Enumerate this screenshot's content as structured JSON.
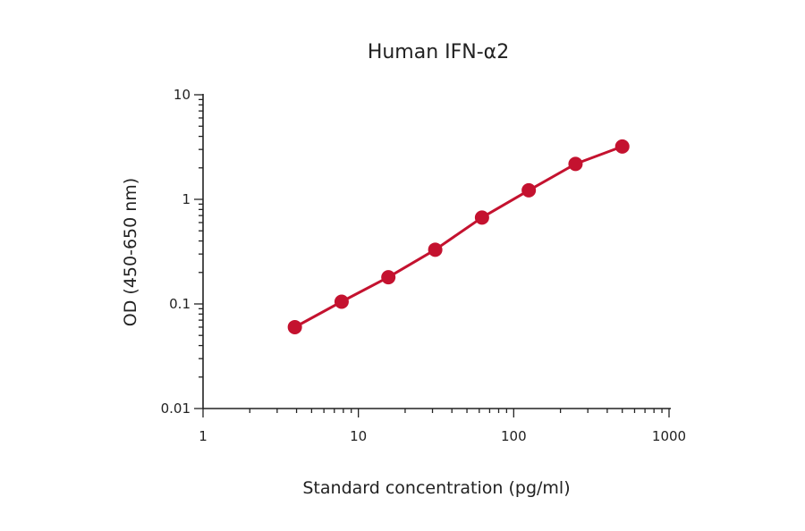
{
  "chart_data": {
    "type": "scatter",
    "title": "Human IFN-α2",
    "xlabel": "Standard concentration (pg/ml)",
    "ylabel": "OD (450-650 nm)",
    "xscale": "log",
    "yscale": "log",
    "xlim": [
      1,
      1000
    ],
    "ylim": [
      0.01,
      10
    ],
    "xticks": [
      "1",
      "10",
      "100",
      "1000"
    ],
    "yticks": [
      "0.01",
      "0.1",
      "1",
      "10"
    ],
    "grid": false,
    "color": "#c4122f",
    "series": [
      {
        "x": [
          3.9,
          7.8,
          15.6,
          31.25,
          62.5,
          125,
          250,
          500
        ],
        "y": [
          0.06,
          0.105,
          0.18,
          0.33,
          0.67,
          1.22,
          2.18,
          3.2
        ]
      }
    ]
  }
}
